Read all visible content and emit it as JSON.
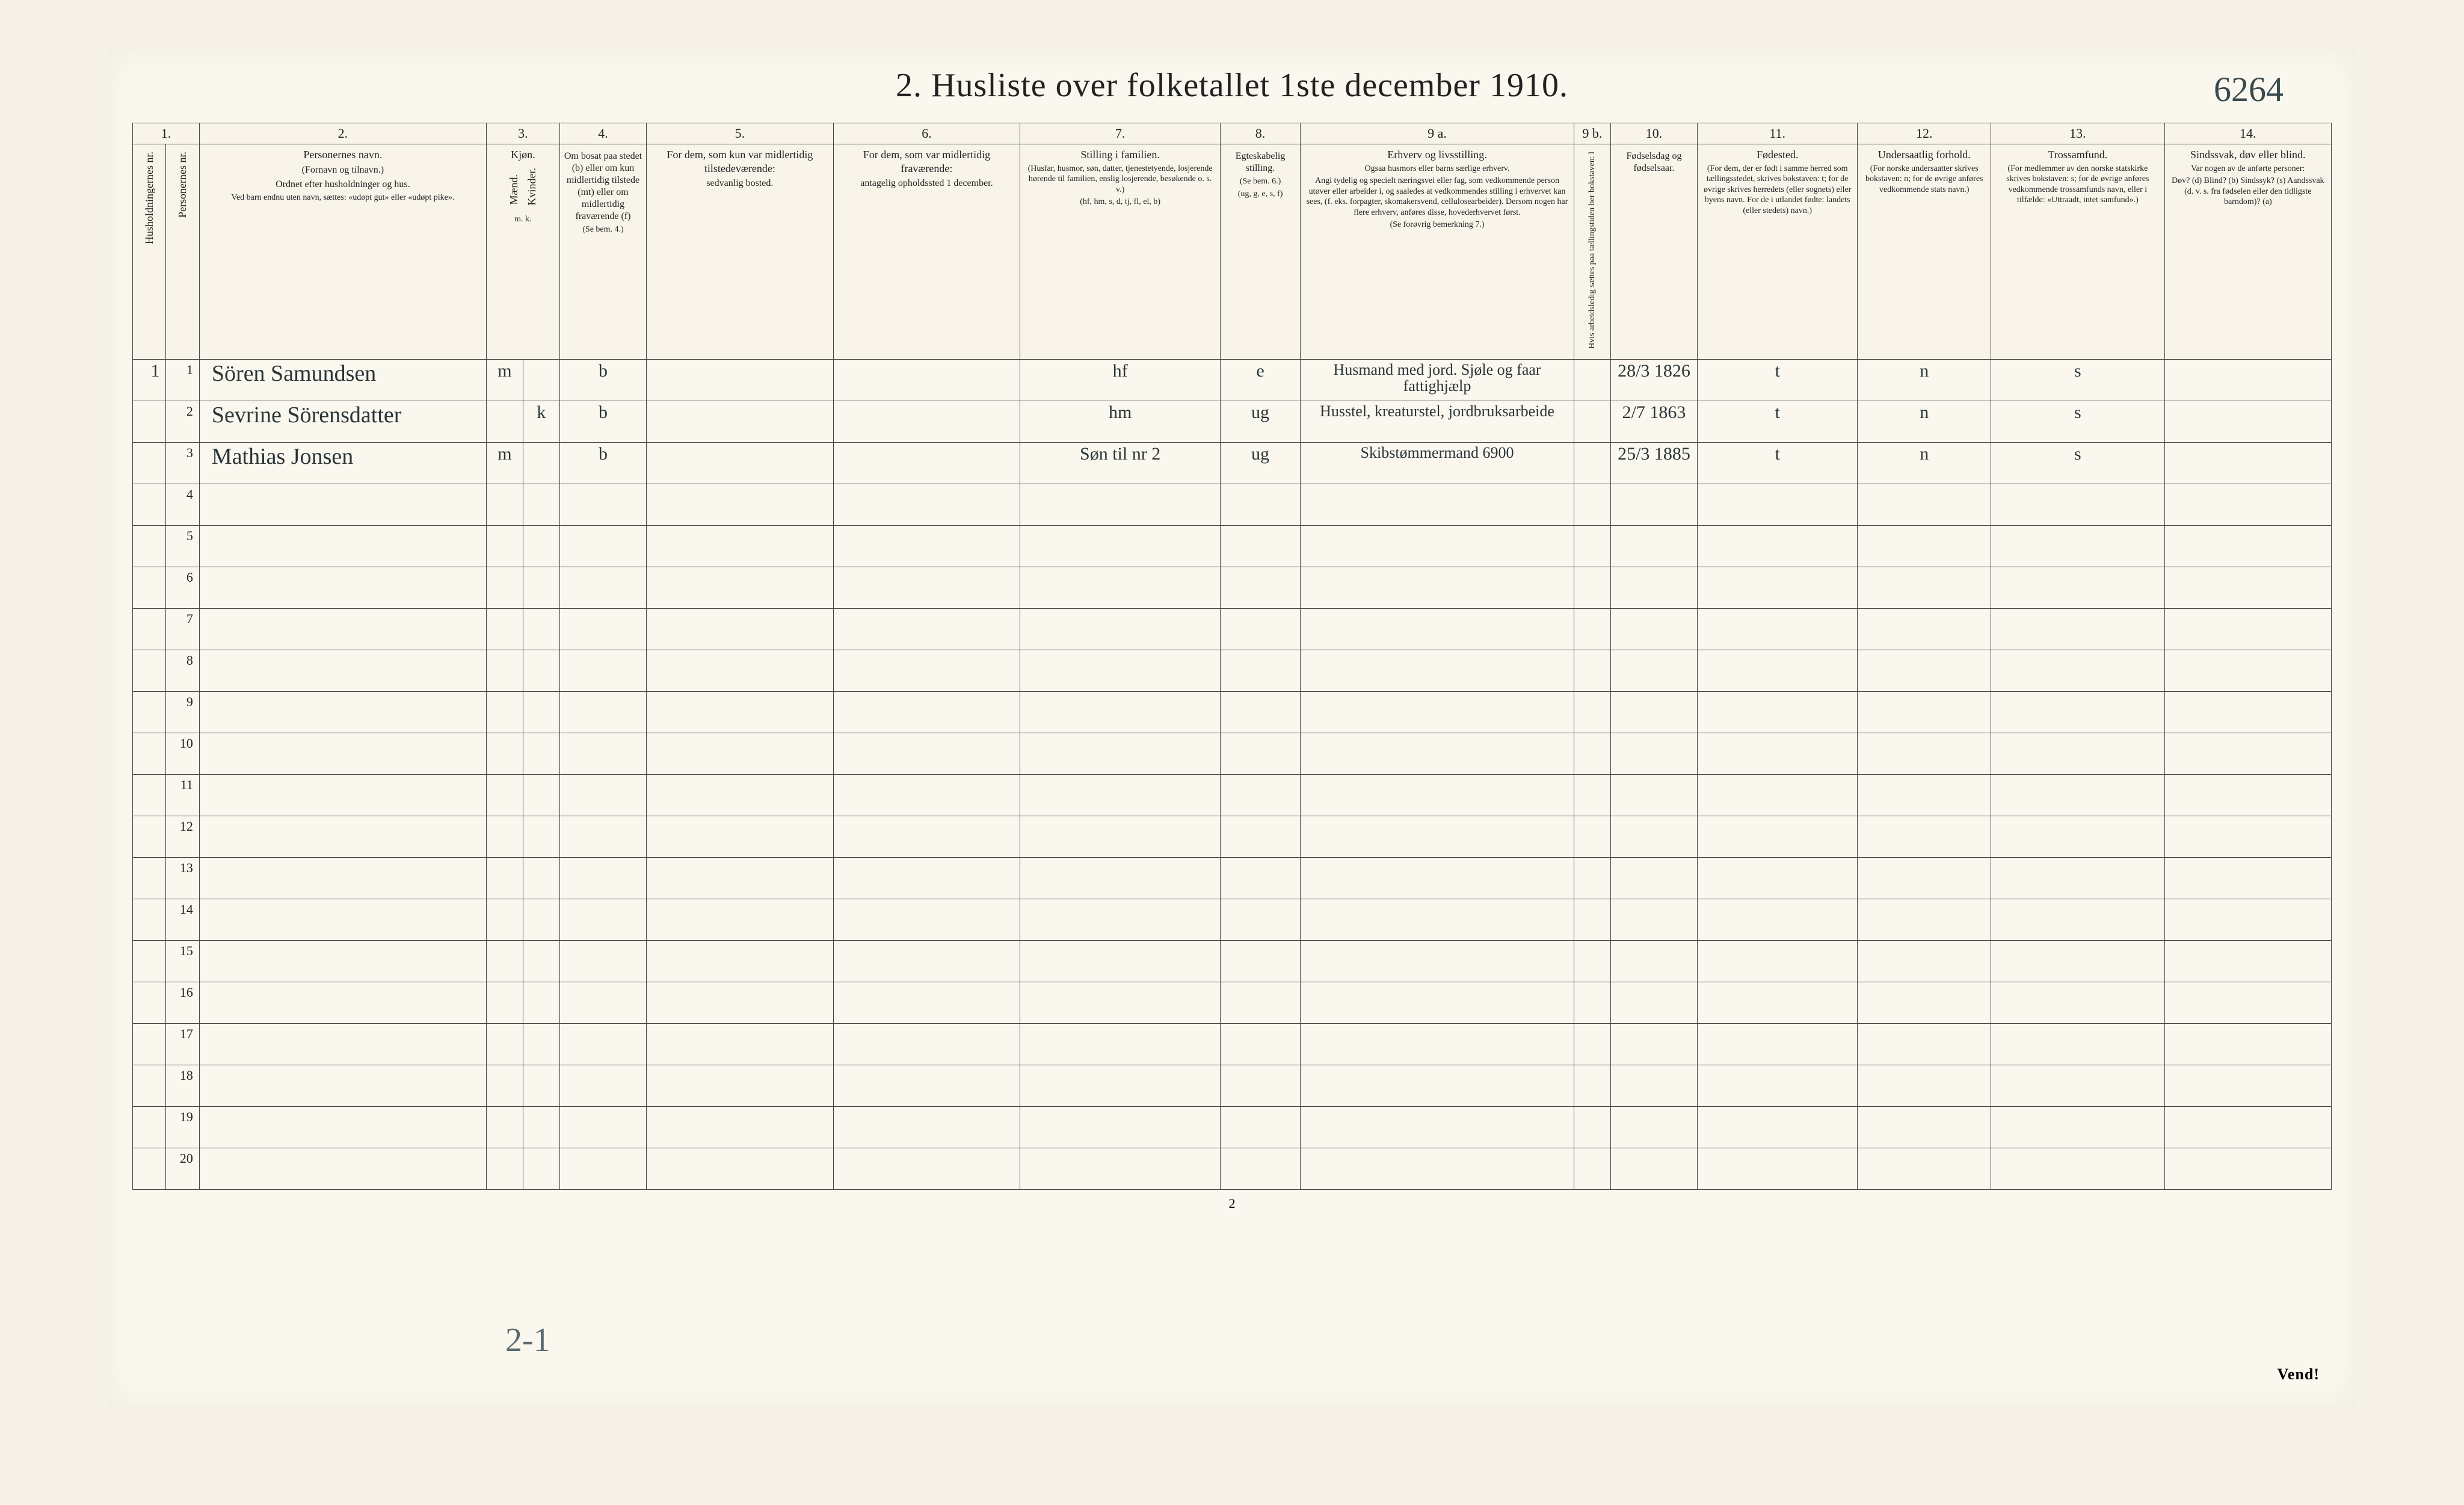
{
  "title": "2.  Husliste over folketallet 1ste december 1910.",
  "topright_hand": "6264",
  "bottom_page": "2",
  "bottom_hand": "2-1",
  "vend": "Vend!",
  "colnums": [
    "1.",
    "2.",
    "3.",
    "4.",
    "5.",
    "6.",
    "7.",
    "8.",
    "9 a.",
    "9 b.",
    "10.",
    "11.",
    "12.",
    "13.",
    "14."
  ],
  "headers": {
    "c1": {
      "vert": "Husholdningernes nr."
    },
    "c1b": {
      "vert": "Personernes nr."
    },
    "c2": {
      "main": "Personernes navn.",
      "sub1": "(Fornavn og tilnavn.)",
      "sub2": "Ordnet efter husholdninger og hus.",
      "sub3": "Ved barn endnu uten navn, sættes: «udøpt gut» eller «udøpt pike»."
    },
    "c3": {
      "main": "Kjøn.",
      "sub_m": "Mænd.",
      "sub_k": "Kvinder.",
      "mk": "m.  k."
    },
    "c4": {
      "main": "Om bosat paa stedet (b) eller om kun midlertidig tilstede (mt) eller om midlertidig fraværende (f)",
      "sub": "(Se bem. 4.)"
    },
    "c5": {
      "main": "For dem, som kun var midlertidig tilstedeværende:",
      "sub": "sedvanlig bosted."
    },
    "c6": {
      "main": "For dem, som var midlertidig fraværende:",
      "sub": "antagelig opholdssted 1 december."
    },
    "c7": {
      "main": "Stilling i familien.",
      "sub1": "(Husfar, husmor, søn, datter, tjenestetyende, losjerende hørende til familien, enslig losjerende, besøkende o. s. v.)",
      "sub2": "(hf, hm, s, d, tj, fl, el, b)"
    },
    "c8": {
      "main": "Egteskabelig stilling.",
      "sub1": "(Se bem. 6.)",
      "sub2": "(ug, g, e, s, f)"
    },
    "c9a": {
      "main": "Erhverv og livsstilling.",
      "sub1": "Ogsaa husmors eller barns særlige erhverv.",
      "sub2": "Angi tydelig og specielt næringsvei eller fag, som vedkommende person utøver eller arbeider i, og saaledes at vedkommendes stilling i erhvervet kan sees, (f. eks. forpagter, skomakersvend, cellulosearbeider). Dersom nogen har flere erhverv, anføres disse, hovederhvervet først.",
      "sub3": "(Se forøvrig bemerkning 7.)"
    },
    "c9b": {
      "vert": "Hvis arbeidsledig sættes paa tællingstiden her bokstaven: l"
    },
    "c10": {
      "main": "Fødselsdag og fødselsaar."
    },
    "c11": {
      "main": "Fødested.",
      "sub1": "(For dem, der er født i samme herred som tællingsstedet, skrives bokstaven: t; for de øvrige skrives herredets (eller sognets) eller byens navn. For de i utlandet fødte: landets (eller stedets) navn.)"
    },
    "c12": {
      "main": "Undersaatlig forhold.",
      "sub1": "(For norske undersaatter skrives bokstaven: n; for de øvrige anføres vedkommende stats navn.)"
    },
    "c13": {
      "main": "Trossamfund.",
      "sub1": "(For medlemmer av den norske statskirke skrives bokstaven: s; for de øvrige anføres vedkommende trossamfunds navn, eller i tilfælde: «Uttraadt, intet samfund».)"
    },
    "c14": {
      "main": "Sindssvak, døv eller blind.",
      "sub1": "Var nogen av de anførte personer:",
      "sub2": "Døv? (d)  Blind? (b)  Sindssyk? (s)  Aandssvak (d. v. s. fra fødselen eller den tidligste barndom)? (a)"
    }
  },
  "rows": [
    {
      "hh": "1",
      "pn": "1",
      "name": "Sören Samundsen",
      "m": "m",
      "k": "",
      "res": "b",
      "c5": "",
      "c6": "",
      "c7": "hf",
      "c8": "e",
      "c9a": "Husmand med jord. Sjøle og faar fattighjælp",
      "c9b": "",
      "c10": "28/3 1826",
      "c11": "t",
      "c12": "n",
      "c13": "s",
      "c14": ""
    },
    {
      "hh": "",
      "pn": "2",
      "name": "Sevrine Sörensdatter",
      "m": "",
      "k": "k",
      "res": "b",
      "c5": "",
      "c6": "",
      "c7": "hm",
      "c8": "ug",
      "c9a": "Husstel, kreaturstel, jordbruksarbeide",
      "c9b": "",
      "c10": "2/7 1863",
      "c11": "t",
      "c12": "n",
      "c13": "s",
      "c14": ""
    },
    {
      "hh": "",
      "pn": "3",
      "name": "Mathias Jonsen",
      "m": "m",
      "k": "",
      "res": "b",
      "c5": "",
      "c6": "",
      "c7": "Søn til nr 2",
      "c8": "ug",
      "c9a": "Skibstømmermand 6900",
      "c9b": "",
      "c10": "25/3 1885",
      "c11": "t",
      "c12": "n",
      "c13": "s",
      "c14": ""
    }
  ],
  "empty_row_nums": [
    "4",
    "5",
    "6",
    "7",
    "8",
    "9",
    "10",
    "11",
    "12",
    "13",
    "14",
    "15",
    "16",
    "17",
    "18",
    "19",
    "20"
  ]
}
